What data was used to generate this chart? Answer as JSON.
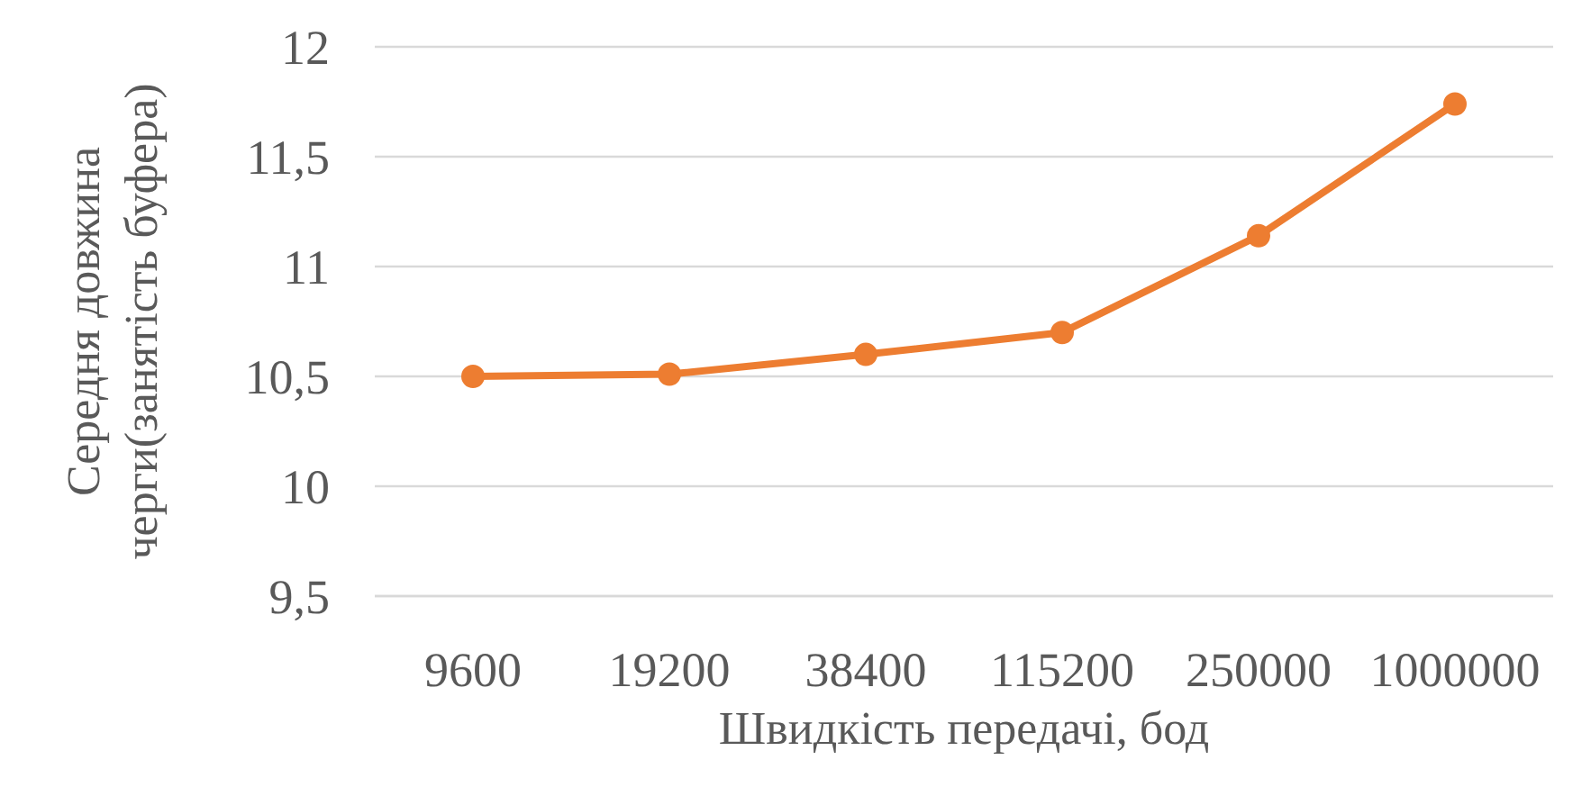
{
  "chart_data": {
    "type": "line",
    "categories": [
      "9600",
      "19200",
      "38400",
      "115200",
      "250000",
      "1000000"
    ],
    "series": [
      {
        "color": "#ed7d31",
        "values": [
          10.5,
          10.51,
          10.6,
          10.7,
          11.14,
          11.74
        ]
      }
    ],
    "xlabel": "Швидкість передачі, бод",
    "ylabel": "Середня довжина черги(занятість буфера)",
    "ylim": [
      9.5,
      12
    ],
    "yticks": [
      {
        "value": 9.5,
        "label": "9,5"
      },
      10,
      {
        "value": 10.5,
        "label": "10,5"
      },
      11,
      {
        "value": 11.5,
        "label": "11,5"
      },
      12
    ],
    "grid": "y",
    "marker": "circle",
    "line_style": "solid"
  }
}
